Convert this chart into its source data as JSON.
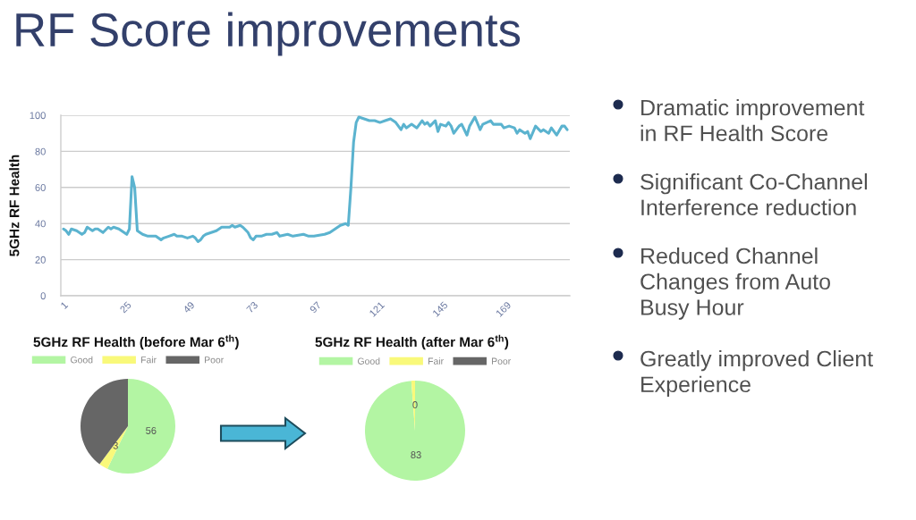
{
  "chart_data": [
    {
      "type": "line",
      "title": "RF Score improvements",
      "ylabel": "5GHz RF Health",
      "x": [
        1,
        2,
        3,
        4,
        6,
        8,
        9,
        10,
        12,
        13,
        14,
        16,
        18,
        19,
        20,
        22,
        23,
        25,
        26,
        27,
        28,
        29,
        30,
        31,
        33,
        34,
        36,
        38,
        39,
        41,
        43,
        44,
        46,
        48,
        50,
        51,
        52,
        53,
        54,
        55,
        57,
        59,
        61,
        64,
        65,
        66,
        68,
        69,
        71,
        72,
        73,
        74,
        76,
        78,
        80,
        82,
        83,
        86,
        88,
        92,
        94,
        96,
        100,
        102,
        104,
        106,
        108,
        109,
        110,
        111,
        112,
        113,
        115,
        117,
        119,
        121,
        123,
        125,
        127,
        129,
        130,
        131,
        133,
        135,
        137,
        138,
        139,
        140,
        142,
        143,
        144,
        146,
        147,
        148,
        149,
        151,
        152,
        154,
        155,
        157,
        159,
        160,
        163,
        164,
        167,
        168,
        170,
        172,
        173,
        174,
        176,
        177,
        178,
        180,
        182,
        183,
        185,
        186,
        188,
        190,
        191,
        192
      ],
      "series": [
        {
          "color": "#5bb3cf",
          "values": [
            37,
            36,
            34,
            37,
            36,
            34,
            35,
            38,
            36,
            37,
            37,
            35,
            38,
            37,
            38,
            37,
            36,
            34,
            37,
            66,
            60,
            36,
            35,
            34,
            33,
            33,
            33,
            31,
            32,
            33,
            34,
            33,
            33,
            32,
            33,
            32,
            30,
            31,
            33,
            34,
            35,
            36,
            38,
            38,
            39,
            38,
            39,
            38,
            35,
            32,
            31,
            33,
            33,
            34,
            34,
            35,
            33,
            34,
            33,
            34,
            33,
            33,
            34,
            35,
            37,
            39,
            40,
            39,
            60,
            85,
            96,
            99,
            98,
            97,
            97,
            96,
            97,
            98,
            96,
            92,
            95,
            93,
            95,
            93,
            97,
            95,
            96,
            94,
            97,
            91,
            95,
            94,
            96,
            94,
            90,
            94,
            95,
            89,
            94,
            99,
            92,
            95,
            97,
            95,
            95,
            93,
            94,
            93,
            90,
            92,
            90,
            91,
            87,
            94,
            91,
            92,
            90,
            93,
            89,
            94,
            94,
            92
          ]
        }
      ],
      "xlim": [
        0,
        193
      ],
      "xticks": [
        1,
        25,
        49,
        73,
        97,
        121,
        145,
        169
      ],
      "ylim": [
        0,
        100
      ],
      "yticks": [
        0,
        20,
        40,
        60,
        80,
        100
      ],
      "grid": "y"
    },
    {
      "type": "pie",
      "title": "5GHz RF Health (before Mar 6$^{th}$)",
      "categories": [
        "Good",
        "Fair",
        "Poor"
      ],
      "values": [
        56,
        3,
        39
      ],
      "colors": [
        "#b3f5a3",
        "#f9f97a",
        "#666666"
      ],
      "value_labels": [
        "56",
        "3",
        null
      ],
      "legend": "top"
    },
    {
      "type": "pie",
      "title": "5GHz RF Health (after Mar 6$^{th}$)",
      "categories": [
        "Good",
        "Fair",
        "Poor"
      ],
      "values": [
        83,
        1,
        0
      ],
      "colors": [
        "#b3f5a3",
        "#f9f97a",
        "#666666"
      ],
      "value_labels": [
        "83",
        null,
        "0"
      ],
      "legend": "top"
    },
    {
      "type": "other",
      "annotations": [
        "Dramatic improvement\nin RF Health Score",
        "Significant Co-Channel\nInterference reduction",
        "Reduced Channel\nChanges from Auto\nBusy Hour",
        "Greatly improved Client\nExperience"
      ]
    }
  ]
}
